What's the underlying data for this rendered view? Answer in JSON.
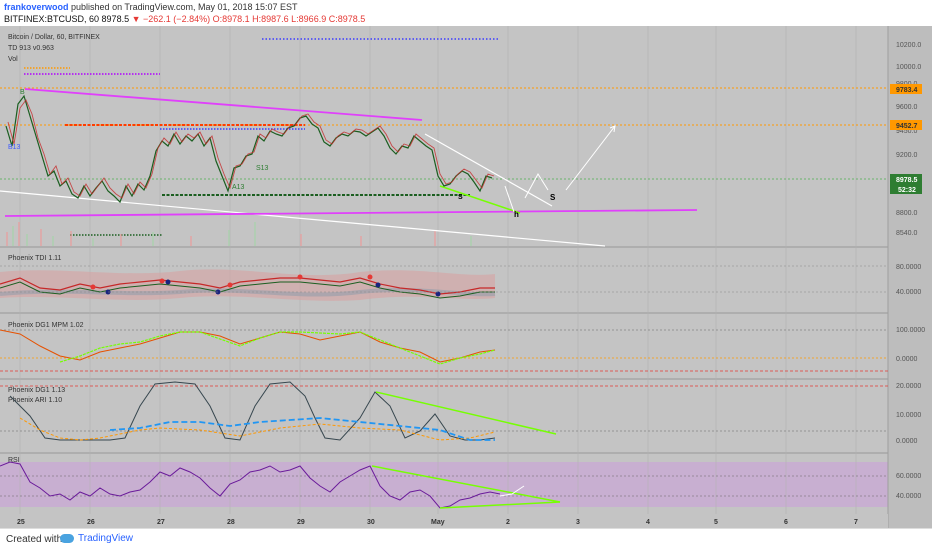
{
  "header": {
    "author": "frankoverwood",
    "published": "published on TradingView.com, May 01, 2018 15:07 EST",
    "symbol": "BITFINEX:BTCUSD, 60",
    "last": "8978.5",
    "change": "−262.1 (−2.84%)",
    "ohlc": "O:8978.1 H:8987.6 L:8966.9 C:8978.5"
  },
  "legend": {
    "title": "Bitcoin / Dollar, 60, BITFINEX",
    "td": "TD 913 v0.963",
    "vol": "Vol"
  },
  "panes": {
    "tdi": "Phoenix TDI 1.11",
    "mpm": "Phoenix DG1 MPM 1.02",
    "dg1": "Phoenix DG1 1.13",
    "ari": "Phoenix ARI 1.10",
    "rsi": "RSI"
  },
  "price_axis": {
    "ticks": [
      "10200.0",
      "10000.0",
      "9800.0",
      "9600.0",
      "9450.0",
      "9200.0",
      "8978.5",
      "8800.0",
      "8540.0"
    ],
    "badges": {
      "orange1": "9783.4",
      "orange2": "9452.7",
      "last": "8978.5",
      "timer": "52:32"
    }
  },
  "tdi_axis": [
    "80.0000",
    "40.0000"
  ],
  "mpm_axis": [
    "100.0000",
    "0.0000"
  ],
  "dg1_axis": [
    "20.0000",
    "10.0000",
    "0.0000"
  ],
  "rsi_axis": [
    "60.0000",
    "40.0000"
  ],
  "time_axis": [
    "25",
    "26",
    "27",
    "28",
    "29",
    "30",
    "May",
    "2",
    "3",
    "4",
    "5",
    "6",
    "7"
  ],
  "annotations": {
    "s_price": "S",
    "h_label": "h",
    "b_label": "B",
    "a13": "A13",
    "s13": "S13",
    "b13": "B13",
    "s_small": "S",
    "s_small2": "S13"
  },
  "colors": {
    "background": "#bdbdbd",
    "magenta": "#e040fb",
    "orange": "#ff9800",
    "red": "#ff3d00",
    "green": "#2e7d32",
    "blue_dotted": "#3d3dff",
    "white": "#ffffff",
    "lime": "#76ff03"
  },
  "chart_data": {
    "type": "line",
    "xlabel": "",
    "ylabel": "",
    "x": [
      "25",
      "26",
      "27",
      "28",
      "29",
      "30",
      "May",
      "2"
    ],
    "series": [
      {
        "values": [
          9700,
          8900,
          9300,
          9150,
          9450,
          9300,
          8950,
          8978.5
        ]
      }
    ],
    "ylim": [
      8450,
      10300
    ]
  },
  "footer": {
    "created": "Created with",
    "brand": "TradingView"
  }
}
